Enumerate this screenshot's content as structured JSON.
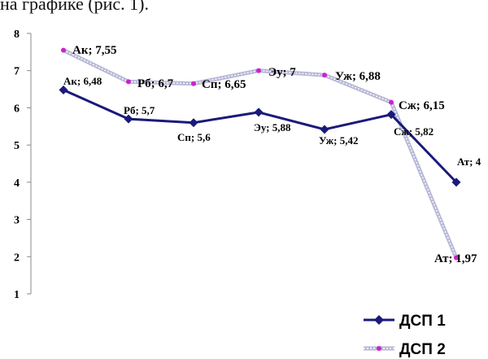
{
  "caption": "на графике (рис. 1).",
  "chart_data": {
    "type": "line",
    "categories": [
      "Ак",
      "Рб",
      "Сп",
      "Эу",
      "Уж",
      "Сж",
      "Ат"
    ],
    "ylim": [
      1,
      8
    ],
    "yticks": [
      "1",
      "2",
      "3",
      "4",
      "5",
      "6",
      "7",
      "8"
    ],
    "grid": false,
    "legend_position": "bottom-right",
    "series": [
      {
        "name": "ДСП 1",
        "color": "#1a1a7a",
        "marker": "diamond",
        "values": [
          6.48,
          5.7,
          5.6,
          5.88,
          5.42,
          5.82,
          4
        ],
        "labels": [
          "Ак; 6,48",
          "Рб; 5,7",
          "Сп; 5,6",
          "Эу; 5,88",
          "Уж; 5,42",
          "Сж; 5,82",
          "Ат; 4"
        ]
      },
      {
        "name": "ДСП 2",
        "color": "#b8b8d8",
        "marker_color": "#cc22cc",
        "marker": "circle",
        "values": [
          7.55,
          6.7,
          6.65,
          7,
          6.88,
          6.15,
          1.97
        ],
        "labels": [
          "Ак; 7,55",
          "Рб; 6,7",
          "Сп; 6,65",
          "Эу; 7",
          "Уж; 6,88",
          "Сж; 6,15",
          "Ат; 1,97"
        ]
      }
    ]
  }
}
